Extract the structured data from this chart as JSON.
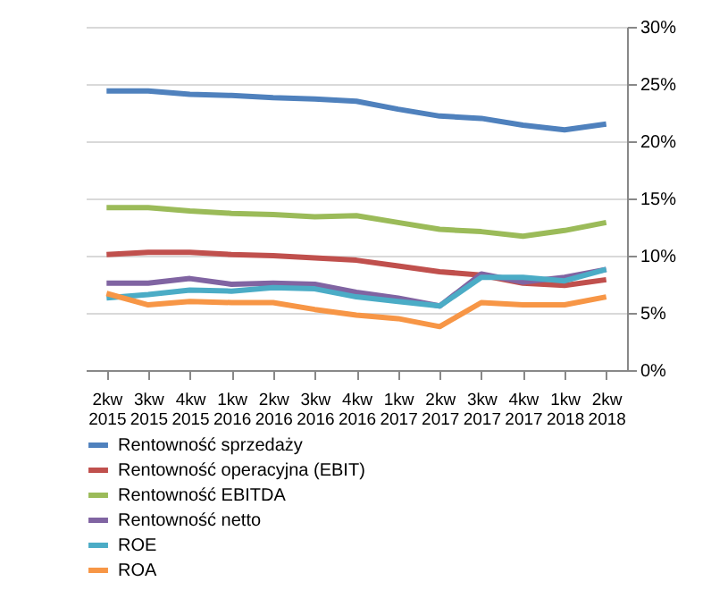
{
  "chart_data": {
    "type": "line",
    "categories": [
      "2kw 2015",
      "3kw 2015",
      "4kw 2015",
      "1kw 2016",
      "2kw 2016",
      "3kw 2016",
      "4kw 2016",
      "1kw 2017",
      "2kw 2017",
      "3kw 2017",
      "4kw 2017",
      "1kw 2018",
      "2kw 2018"
    ],
    "series": [
      {
        "name": "Rentowność sprzedaży",
        "color": "#4f81bd",
        "values": [
          24.4,
          24.4,
          24.1,
          24.0,
          23.8,
          23.7,
          23.5,
          22.8,
          22.2,
          22.0,
          21.4,
          21.0,
          21.5
        ]
      },
      {
        "name": "Rentowność operacyjna (EBIT)",
        "color": "#c0504d",
        "values": [
          10.1,
          10.3,
          10.3,
          10.1,
          10.0,
          9.8,
          9.6,
          9.1,
          8.6,
          8.3,
          7.6,
          7.4,
          7.9
        ]
      },
      {
        "name": "Rentowność EBITDA",
        "color": "#9bbb59",
        "values": [
          14.2,
          14.2,
          13.9,
          13.7,
          13.6,
          13.4,
          13.5,
          12.9,
          12.3,
          12.1,
          11.7,
          12.2,
          12.9
        ]
      },
      {
        "name": "Rentowność netto",
        "color": "#8064a2",
        "values": [
          7.6,
          7.6,
          8.0,
          7.5,
          7.6,
          7.5,
          6.8,
          6.3,
          5.6,
          8.4,
          7.7,
          8.1,
          8.8
        ]
      },
      {
        "name": "ROE",
        "color": "#4bacc6",
        "values": [
          6.3,
          6.6,
          7.0,
          6.9,
          7.2,
          7.1,
          6.4,
          6.0,
          5.6,
          8.1,
          8.1,
          7.8,
          8.8
        ]
      },
      {
        "name": "ROA",
        "color": "#f79646",
        "values": [
          6.7,
          5.7,
          6.0,
          5.9,
          5.9,
          5.3,
          4.8,
          4.5,
          3.8,
          5.9,
          5.7,
          5.7,
          6.4
        ]
      }
    ],
    "ylim": [
      0,
      30
    ],
    "yticks": [
      {
        "value": 0,
        "label": "0%"
      },
      {
        "value": 5,
        "label": "5%"
      },
      {
        "value": 10,
        "label": "10%"
      },
      {
        "value": 15,
        "label": "15%"
      },
      {
        "value": 20,
        "label": "20%"
      },
      {
        "value": 25,
        "label": "25%"
      },
      {
        "value": 30,
        "label": "30%"
      }
    ],
    "grid": "y",
    "legend": "bottom",
    "marker": "none",
    "line_style": "solid"
  }
}
